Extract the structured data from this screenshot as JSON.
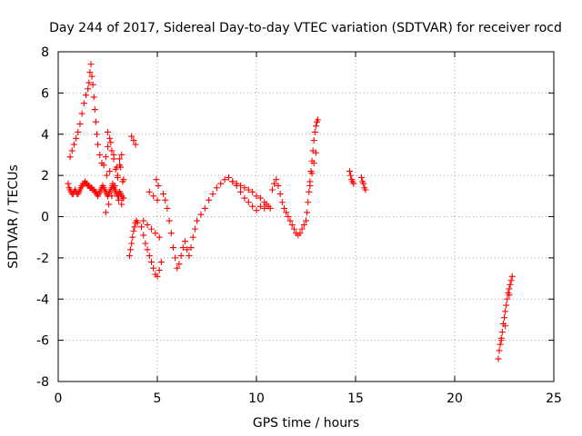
{
  "chart_data": {
    "type": "scatter",
    "title": "Day 244 of 2017, Sidereal Day-to-day VTEC variation (SDTVAR) for receiver rocd",
    "xlabel": "GPS time / hours",
    "ylabel": "SDTVAR / TECUs",
    "xlim": [
      0,
      25
    ],
    "ylim": [
      -8,
      8
    ],
    "xticks": [
      "0",
      "5",
      "10",
      "15",
      "20",
      "25"
    ],
    "yticks": [
      "-8",
      "-6",
      "-4",
      "-2",
      "0",
      "2",
      "4",
      "6",
      "8"
    ],
    "grid": true,
    "marker": "+",
    "color": "#ff0000",
    "series": [
      {
        "name": "SDTVAR",
        "x": [
          0.5,
          0.55,
          0.6,
          0.65,
          0.7,
          0.75,
          0.8,
          0.85,
          0.9,
          0.95,
          1.0,
          1.05,
          1.1,
          1.15,
          1.2,
          1.25,
          1.3,
          1.35,
          1.4,
          1.45,
          1.5,
          1.55,
          1.6,
          1.65,
          1.7,
          1.75,
          1.8,
          1.85,
          1.9,
          1.95,
          2.0,
          2.05,
          2.1,
          2.15,
          2.2,
          2.25,
          2.3,
          2.35,
          2.4,
          2.45,
          2.5,
          2.55,
          2.6,
          2.65,
          2.7,
          2.75,
          2.8,
          2.85,
          2.9,
          2.95,
          3.0,
          3.05,
          3.1,
          3.15,
          3.2,
          3.25,
          3.3,
          0.6,
          0.7,
          0.8,
          0.9,
          1.0,
          1.1,
          1.2,
          1.3,
          1.4,
          1.5,
          1.55,
          1.6,
          1.65,
          1.7,
          1.75,
          1.8,
          1.85,
          1.9,
          1.95,
          2.0,
          2.1,
          2.2,
          2.3,
          2.4,
          2.5,
          2.6,
          2.7,
          2.8,
          2.9,
          3.0,
          3.1,
          3.2,
          3.3,
          2.4,
          2.55,
          2.7,
          2.85,
          3.0,
          3.15,
          2.5,
          2.65,
          2.8,
          2.95,
          3.1,
          3.25,
          2.45,
          2.6,
          2.75,
          2.9,
          3.05,
          3.2,
          3.6,
          3.65,
          3.7,
          3.75,
          3.8,
          3.85,
          3.9,
          3.95,
          4.0,
          3.7,
          3.8,
          3.9,
          4.2,
          4.3,
          4.4,
          4.5,
          4.6,
          4.7,
          4.8,
          4.9,
          5.0,
          5.1,
          5.2,
          4.3,
          4.5,
          4.7,
          4.9,
          5.1,
          4.6,
          4.8,
          5.0,
          4.95,
          5.05,
          5.3,
          5.4,
          5.5,
          5.6,
          5.7,
          5.8,
          5.9,
          6.0,
          6.1,
          6.2,
          6.3,
          6.4,
          6.5,
          6.6,
          6.7,
          6.8,
          6.9,
          7.0,
          7.2,
          7.4,
          7.6,
          7.8,
          8.0,
          8.2,
          8.4,
          8.6,
          8.8,
          9.0,
          9.2,
          9.4,
          9.6,
          9.8,
          10.0,
          10.2,
          10.4,
          8.8,
          9.0,
          9.2,
          9.4,
          9.6,
          9.8,
          10.0,
          10.2,
          10.4,
          10.5,
          10.6,
          10.7,
          10.8,
          10.9,
          11.0,
          11.1,
          11.2,
          11.3,
          11.4,
          11.5,
          11.6,
          11.7,
          11.8,
          11.9,
          12.0,
          12.1,
          12.2,
          12.3,
          12.4,
          12.5,
          12.55,
          12.6,
          12.65,
          12.7,
          12.75,
          12.8,
          12.85,
          12.9,
          12.95,
          13.0,
          13.05,
          13.1,
          12.7,
          12.8,
          12.9,
          13.0,
          14.7,
          14.75,
          14.8,
          14.85,
          14.9,
          15.3,
          15.35,
          15.4,
          15.45,
          15.5,
          22.2,
          22.25,
          22.3,
          22.35,
          22.4,
          22.45,
          22.5,
          22.55,
          22.6,
          22.65,
          22.7,
          22.75,
          22.8,
          22.85,
          22.9,
          22.35,
          22.55,
          22.75
        ],
        "y": [
          1.6,
          1.4,
          1.3,
          1.2,
          1.1,
          1.1,
          1.2,
          1.3,
          1.2,
          1.1,
          1.1,
          1.2,
          1.3,
          1.4,
          1.5,
          1.6,
          1.6,
          1.7,
          1.6,
          1.6,
          1.5,
          1.5,
          1.4,
          1.4,
          1.4,
          1.3,
          1.3,
          1.2,
          1.2,
          1.1,
          1.0,
          1.1,
          1.2,
          1.3,
          1.4,
          1.5,
          1.4,
          1.3,
          1.2,
          1.1,
          1.0,
          1.1,
          1.2,
          1.3,
          1.4,
          1.5,
          1.4,
          1.3,
          1.2,
          1.1,
          1.0,
          1.1,
          1.2,
          1.1,
          1.0,
          0.9,
          0.9,
          2.9,
          3.2,
          3.5,
          3.8,
          4.1,
          4.5,
          5.0,
          5.5,
          5.9,
          6.2,
          6.5,
          7.0,
          7.4,
          6.8,
          6.4,
          5.8,
          5.2,
          4.6,
          4.0,
          3.5,
          3.0,
          2.6,
          2.5,
          2.9,
          3.4,
          3.8,
          3.2,
          2.8,
          2.3,
          1.9,
          2.5,
          3.0,
          1.8,
          0.2,
          0.6,
          1.0,
          1.5,
          2.0,
          2.4,
          4.1,
          3.6,
          3.0,
          2.4,
          2.8,
          1.7,
          2.0,
          2.2,
          1.6,
          1.3,
          0.8,
          0.6,
          -1.9,
          -1.6,
          -1.3,
          -1.0,
          -0.7,
          -0.5,
          -0.3,
          -0.2,
          -0.3,
          3.9,
          3.7,
          3.5,
          -0.5,
          -0.9,
          -1.3,
          -1.6,
          -1.9,
          -2.2,
          -2.5,
          -2.8,
          -2.9,
          -2.6,
          -2.2,
          -0.2,
          -0.4,
          -0.6,
          -0.8,
          -1.0,
          1.2,
          1.0,
          0.8,
          1.8,
          1.5,
          1.1,
          0.8,
          0.4,
          -0.2,
          -0.8,
          -1.5,
          -2.0,
          -2.5,
          -2.3,
          -1.9,
          -1.5,
          -1.2,
          -1.6,
          -1.9,
          -1.5,
          -1.0,
          -0.6,
          -0.2,
          0.1,
          0.4,
          0.8,
          1.1,
          1.4,
          1.6,
          1.8,
          1.9,
          1.7,
          1.5,
          1.2,
          0.9,
          0.7,
          0.5,
          0.3,
          0.5,
          0.4,
          1.7,
          1.6,
          1.5,
          1.4,
          1.3,
          1.2,
          1.0,
          0.9,
          0.7,
          0.6,
          0.5,
          0.4,
          1.3,
          1.6,
          1.8,
          1.5,
          1.1,
          0.7,
          0.4,
          0.2,
          0.0,
          -0.2,
          -0.4,
          -0.6,
          -0.8,
          -0.9,
          -0.8,
          -0.6,
          -0.4,
          -0.2,
          0.2,
          0.7,
          1.2,
          1.7,
          2.2,
          2.7,
          3.2,
          3.7,
          4.1,
          4.4,
          4.6,
          4.7,
          1.5,
          2.1,
          2.6,
          3.1,
          2.2,
          2.0,
          1.8,
          1.7,
          1.6,
          1.9,
          1.7,
          1.6,
          1.4,
          1.3,
          -6.9,
          -6.5,
          -6.2,
          -5.9,
          -5.6,
          -5.2,
          -4.9,
          -4.6,
          -4.3,
          -4.0,
          -3.7,
          -3.5,
          -3.3,
          -3.1,
          -2.9,
          -6.0,
          -5.3,
          -3.8
        ]
      }
    ]
  }
}
